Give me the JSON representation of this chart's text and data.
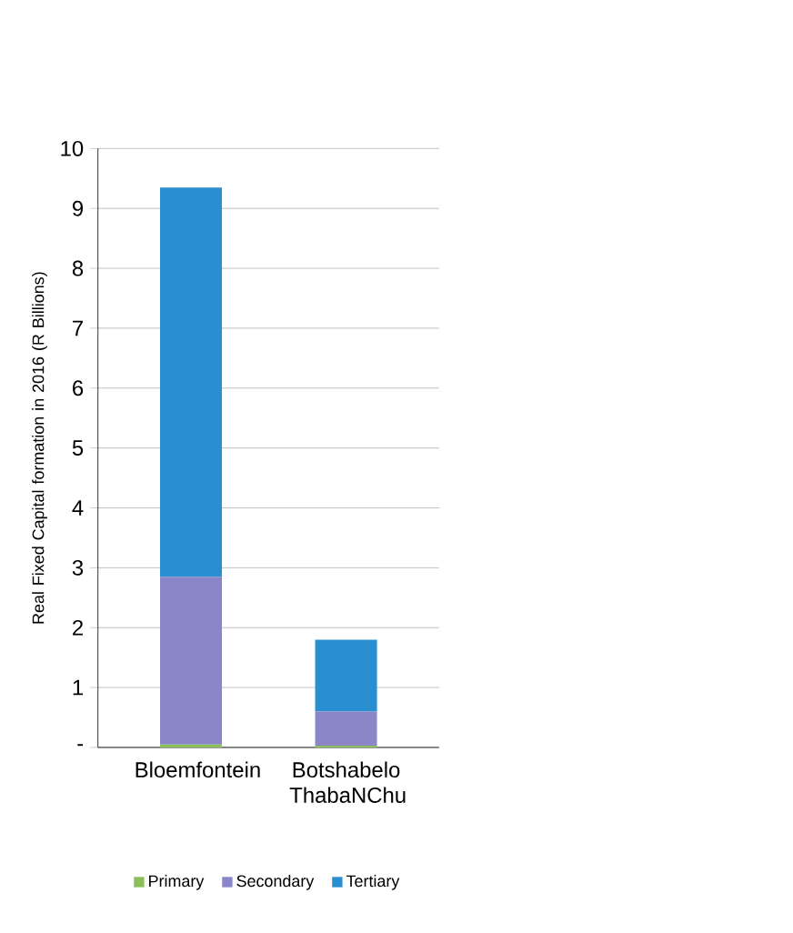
{
  "chart_data": {
    "type": "bar",
    "stacked": true,
    "ylabel": "Real Fixed Capital formation in 2016 (R Billions)",
    "categories": [
      "Bloemfontein",
      "Botshabelo ThabaNChu"
    ],
    "series": [
      {
        "name": "Primary",
        "color": "#8cbf5a",
        "values": [
          0.05,
          0.03
        ]
      },
      {
        "name": "Secondary",
        "color": "#8a86c8",
        "values": [
          2.8,
          0.57
        ]
      },
      {
        "name": "Tertiary",
        "color": "#2a8fd0",
        "values": [
          6.5,
          1.2
        ]
      }
    ],
    "ylim": [
      0,
      10
    ],
    "yticks": [
      {
        "value": 0,
        "label": "-"
      },
      1,
      2,
      3,
      4,
      5,
      6,
      7,
      8,
      9,
      10
    ],
    "grid": "y",
    "legend": "bottom"
  }
}
